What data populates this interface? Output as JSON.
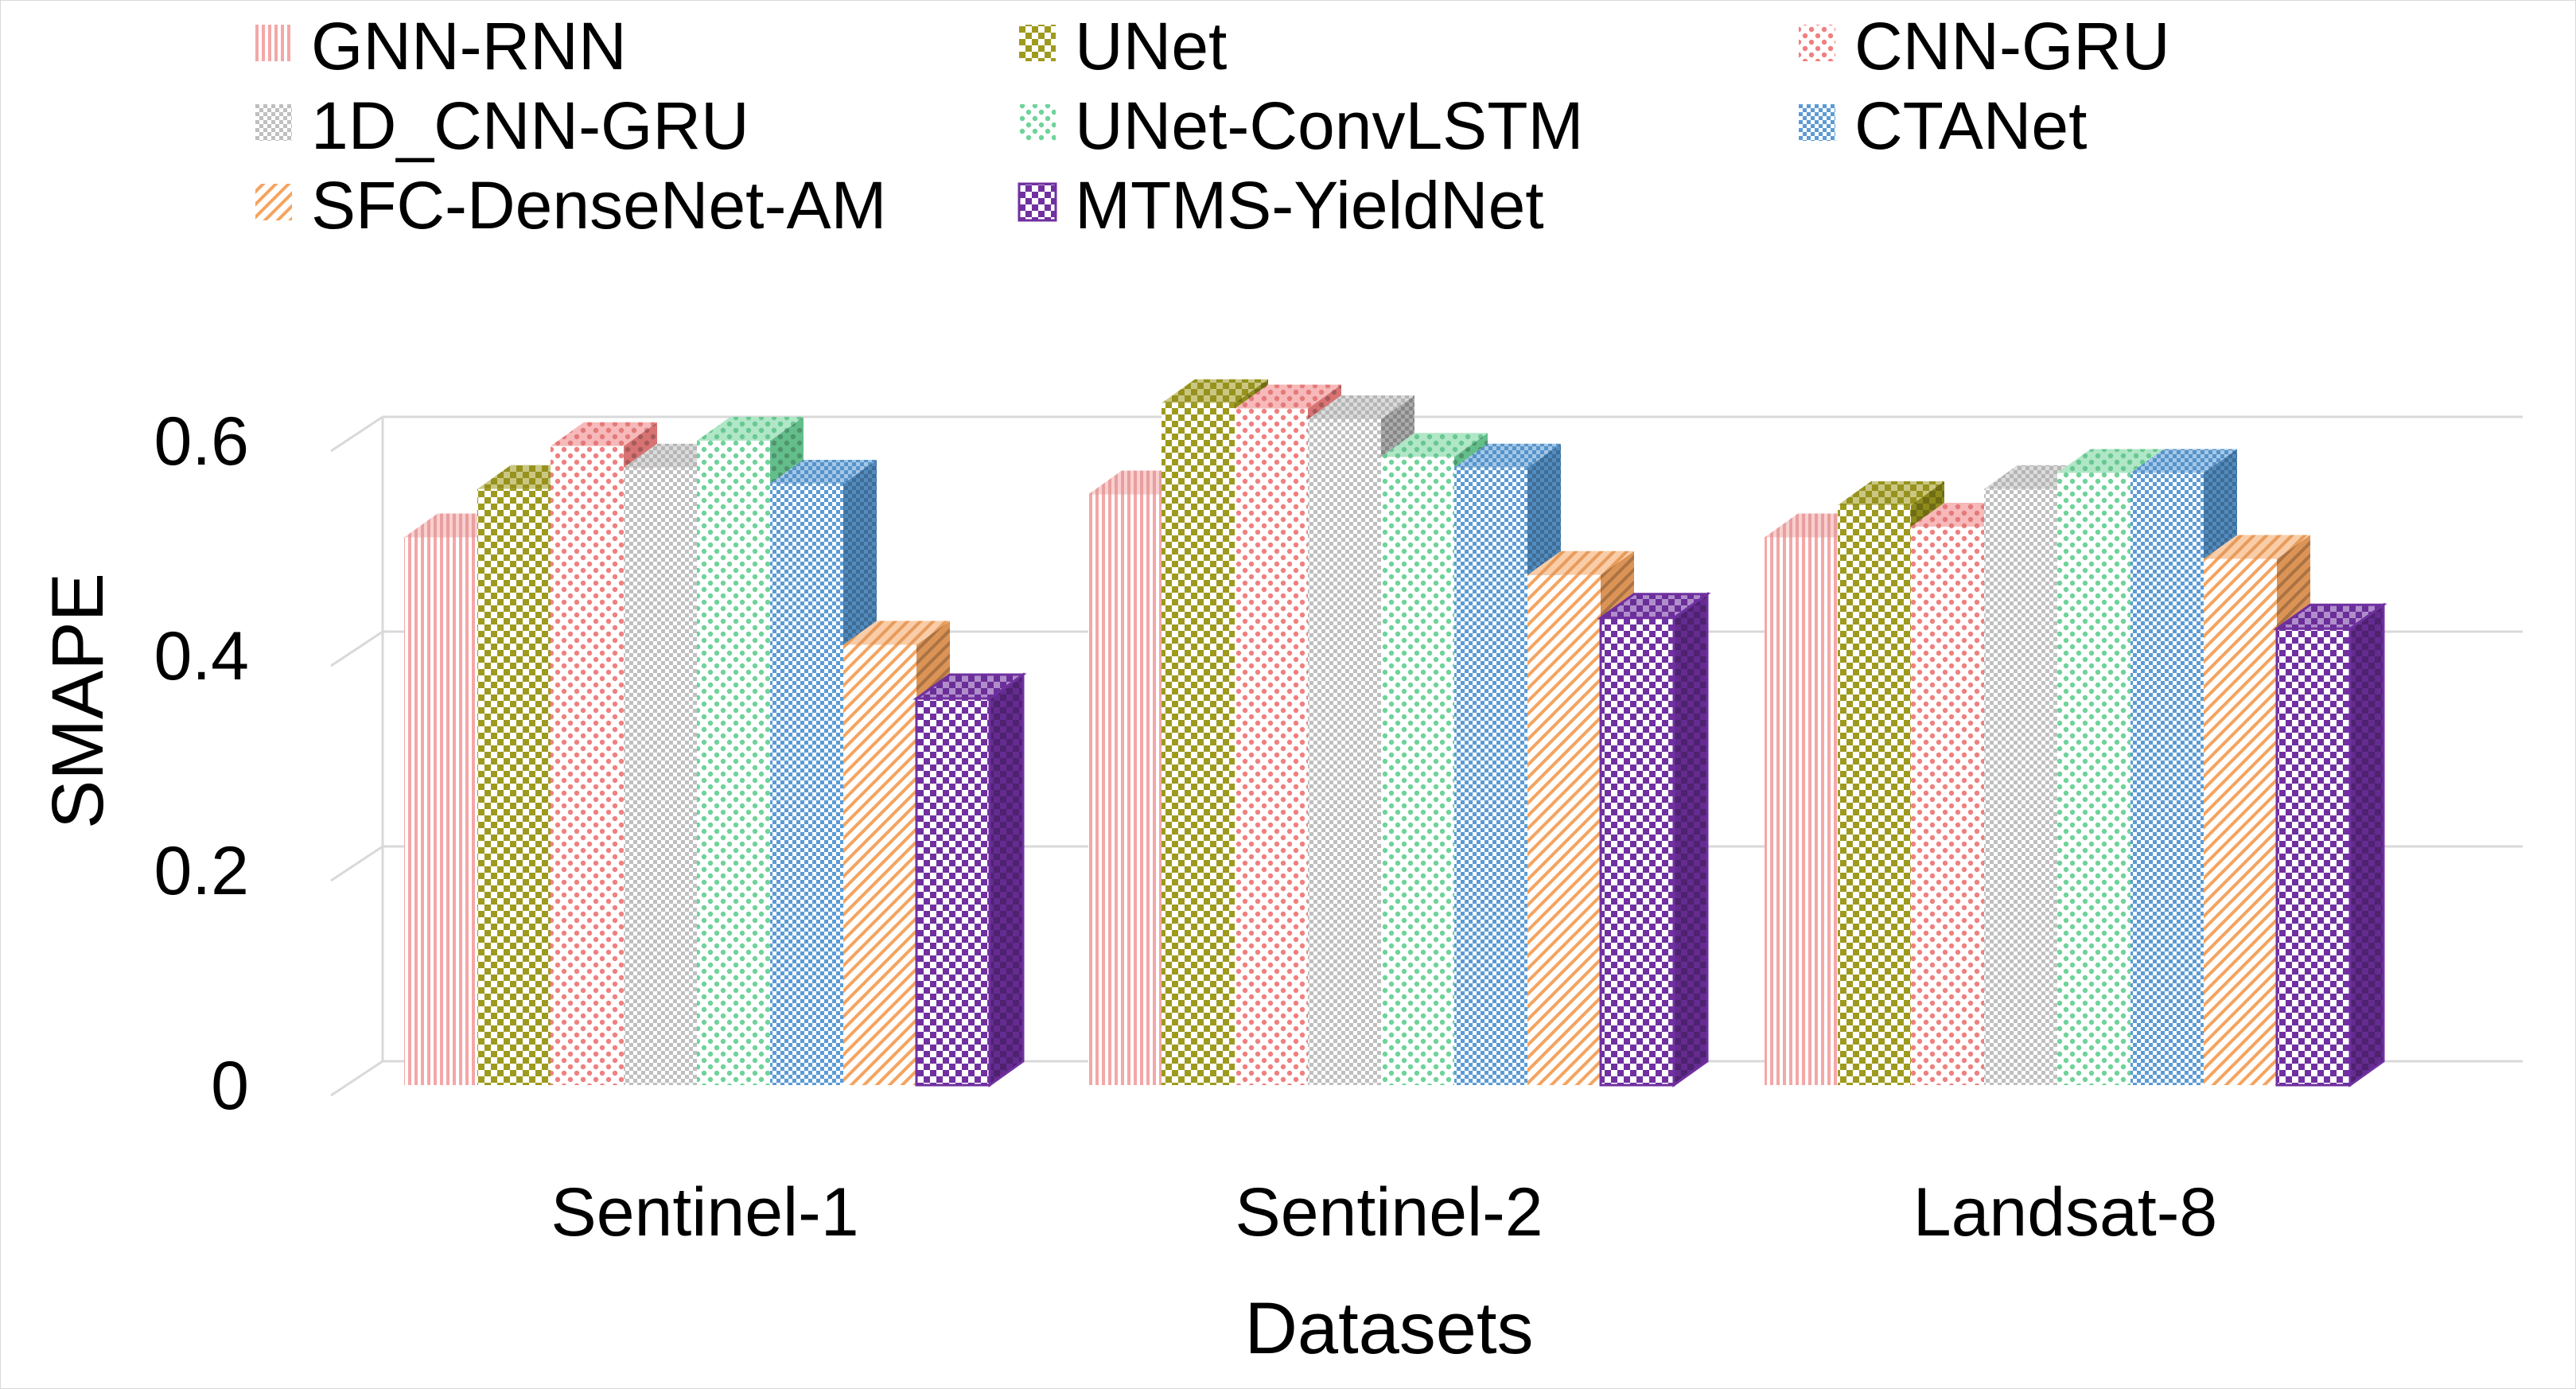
{
  "chart_data": {
    "type": "bar",
    "style": "3d-clustered-column",
    "title": "",
    "xlabel": "Datasets",
    "ylabel": "SMAPE",
    "ylim": [
      0,
      0.6
    ],
    "yticks": [
      "0",
      "0.2",
      "0.4",
      "0.6"
    ],
    "grid": true,
    "legend_position": "top",
    "categories": [
      "Sentinel-1",
      "Sentinel-2",
      "Landsat-8"
    ],
    "series": [
      {
        "name": "GNN-RNN",
        "values": [
          0.51,
          0.55,
          0.51
        ],
        "color": "#f4a7a7",
        "pattern": "vertical-lines"
      },
      {
        "name": "UNet",
        "values": [
          0.555,
          0.635,
          0.54
        ],
        "color": "#9e9a1e",
        "pattern": "checker"
      },
      {
        "name": "CNN-GRU",
        "values": [
          0.595,
          0.63,
          0.52
        ],
        "color": "#f08080",
        "pattern": "dots"
      },
      {
        "name": "1D_CNN-GRU",
        "values": [
          0.575,
          0.62,
          0.555
        ],
        "color": "#bfbfbf",
        "pattern": "checker-small"
      },
      {
        "name": "UNet-ConvLSTM",
        "values": [
          0.6,
          0.585,
          0.57
        ],
        "color": "#6fd39a",
        "pattern": "dots"
      },
      {
        "name": "CTANet",
        "values": [
          0.56,
          0.575,
          0.57
        ],
        "color": "#5b9bd5",
        "pattern": "checker-small"
      },
      {
        "name": "SFC-DenseNet-AM",
        "values": [
          0.41,
          0.475,
          0.49
        ],
        "color": "#f4a460",
        "pattern": "diagonal"
      },
      {
        "name": "MTMS-YieldNet",
        "values": [
          0.36,
          0.435,
          0.425
        ],
        "color": "#7030a0",
        "pattern": "checker"
      }
    ]
  }
}
